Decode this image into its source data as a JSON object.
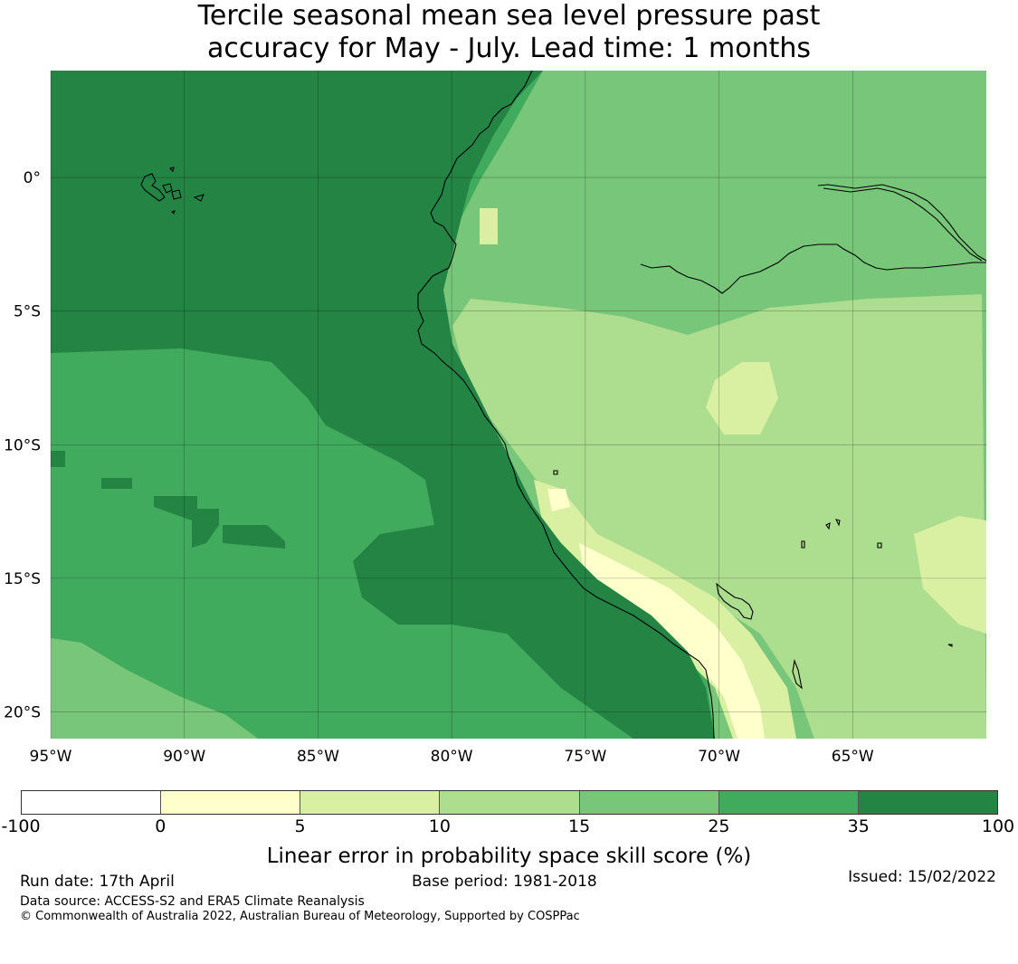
{
  "title": {
    "line1": "Tercile seasonal mean sea level pressure past",
    "line2": "accuracy for May - July. Lead time: 1 months"
  },
  "map": {
    "lon_range": [
      -95,
      -60
    ],
    "lat_range": [
      -21,
      4
    ],
    "lon_ticks": [
      {
        "value": -95,
        "label": "95°W"
      },
      {
        "value": -90,
        "label": "90°W"
      },
      {
        "value": -85,
        "label": "85°W"
      },
      {
        "value": -80,
        "label": "80°W"
      },
      {
        "value": -75,
        "label": "75°W"
      },
      {
        "value": -70,
        "label": "70°W"
      },
      {
        "value": -65,
        "label": "65°W"
      }
    ],
    "lat_ticks": [
      {
        "value": 0,
        "label": "0°"
      },
      {
        "value": -5,
        "label": "5°S"
      },
      {
        "value": -10,
        "label": "10°S"
      },
      {
        "value": -15,
        "label": "15°S"
      },
      {
        "value": -20,
        "label": "20°S"
      }
    ],
    "gridlines": true,
    "coastline_color": "#000000",
    "gridline_color": "#000000"
  },
  "legend": {
    "tick_labels": [
      "-100",
      "0",
      "5",
      "10",
      "15",
      "25",
      "35",
      "100"
    ],
    "colors": [
      "#ffffff",
      "#ffffcc",
      "#d9f0a3",
      "#addd8e",
      "#78c679",
      "#41ab5d",
      "#238443"
    ],
    "label": "Linear error in probability space skill score (%)"
  },
  "footer": {
    "run_date": "Run date: 17th April",
    "base_period": "Base period: 1981-2018",
    "issued": "Issued: 15/02/2022",
    "data_source": "Data source: ACCESS-S2 and ERA5 Climate Reanalysis",
    "copyright": "© Commonwealth of Australia 2022, Australian Bureau of Meteorology, Supported by COSPPac"
  }
}
